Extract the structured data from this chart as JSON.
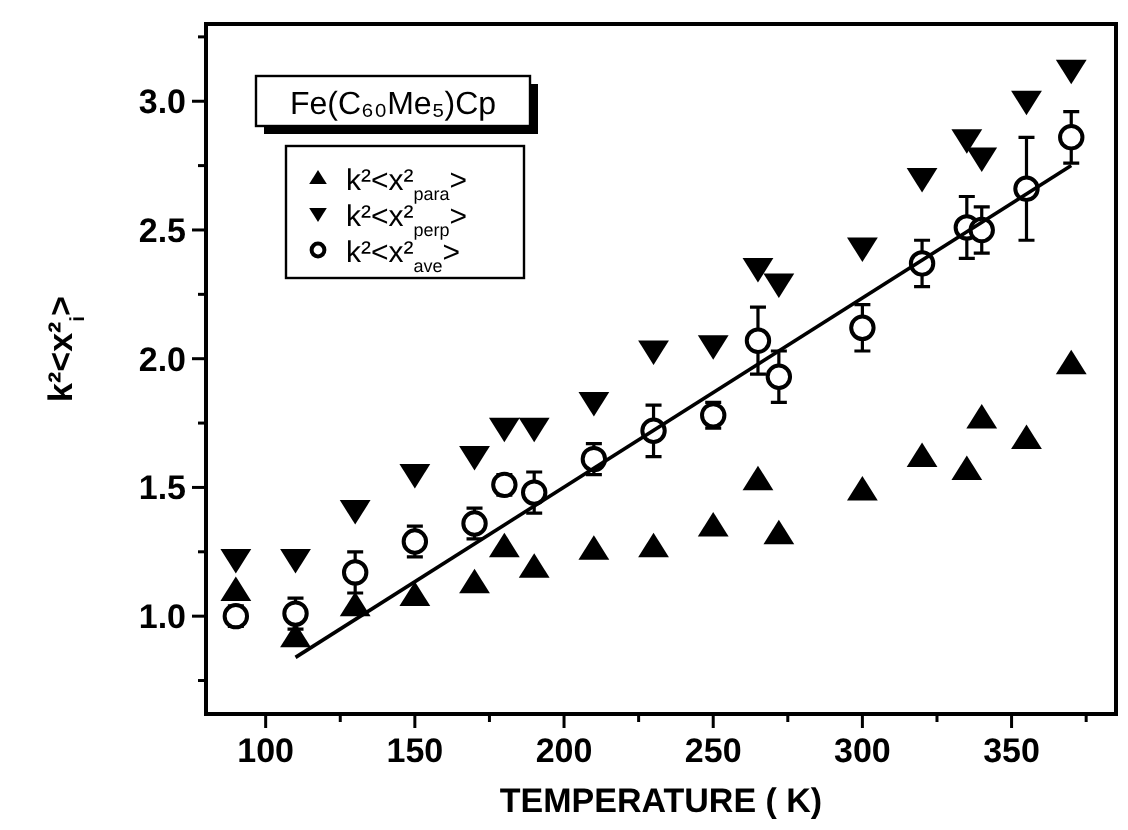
{
  "chart_data": {
    "type": "scatter",
    "xlabel": "TEMPERATURE ( K)",
    "ylabel": "k²<x²$_{i}$>",
    "legend_title": "Fe(C₆₀Me₅)Cp",
    "legend": "top left",
    "xlim": [
      80,
      385
    ],
    "ylim": [
      0.62,
      3.3
    ],
    "xticks": [
      100,
      {
        "value": 125,
        "label": null
      },
      150,
      {
        "value": 175,
        "label": null
      },
      200,
      {
        "value": 225,
        "label": null
      },
      250,
      {
        "value": 275,
        "label": null
      },
      300,
      {
        "value": 325,
        "label": null
      },
      350,
      {
        "value": 375,
        "label": null
      }
    ],
    "yticks": [
      {
        "value": 0.75,
        "label": null
      },
      {
        "value": 1,
        "label": "1.0"
      },
      {
        "value": 1.25,
        "label": null
      },
      1.5,
      {
        "value": 1.75,
        "label": null
      },
      {
        "value": 2,
        "label": "2.0"
      },
      {
        "value": 2.25,
        "label": null
      },
      2.5,
      {
        "value": 2.75,
        "label": null
      },
      {
        "value": 3,
        "label": "3.0"
      },
      {
        "value": 3.25,
        "label": null
      }
    ],
    "x": [
      90,
      110,
      130,
      150,
      170,
      180,
      190,
      210,
      230,
      250,
      265,
      272,
      300,
      320,
      335,
      340,
      355,
      370
    ],
    "series": [
      {
        "name": "k²<x²$_{para}$>",
        "color": "#000000",
        "marker": "triangle",
        "values": [
          1.1,
          0.92,
          1.04,
          1.08,
          1.13,
          1.27,
          1.19,
          1.26,
          1.27,
          1.35,
          1.53,
          1.32,
          1.49,
          1.62,
          1.57,
          1.77,
          1.69,
          1.98
        ]
      },
      {
        "name": "k²<x²$_{perp}$>",
        "color": "#000000",
        "marker": "triangle-down",
        "values": [
          1.22,
          1.22,
          1.41,
          1.55,
          1.62,
          1.73,
          1.73,
          1.83,
          2.03,
          2.05,
          2.35,
          2.29,
          2.43,
          2.7,
          2.85,
          2.78,
          3.0,
          3.12
        ]
      },
      {
        "name": "k²<x²$_{ave}$>",
        "color": "#000000",
        "marker": "circle",
        "values": [
          1.0,
          1.01,
          1.17,
          1.29,
          1.36,
          1.51,
          1.48,
          1.61,
          1.72,
          1.78,
          2.07,
          1.93,
          2.12,
          2.37,
          2.51,
          2.5,
          2.66,
          2.86
        ],
        "errors": [
          0.04,
          0.06,
          0.08,
          0.06,
          0.06,
          0.04,
          0.08,
          0.06,
          0.1,
          0.05,
          0.13,
          0.1,
          0.09,
          0.09,
          0.12,
          0.09,
          0.2,
          0.1
        ]
      },
      {
        "type": "line",
        "color": "#000000",
        "marker": "none",
        "x": [
          110,
          370
        ],
        "values": [
          0.84,
          2.75
        ]
      }
    ]
  }
}
